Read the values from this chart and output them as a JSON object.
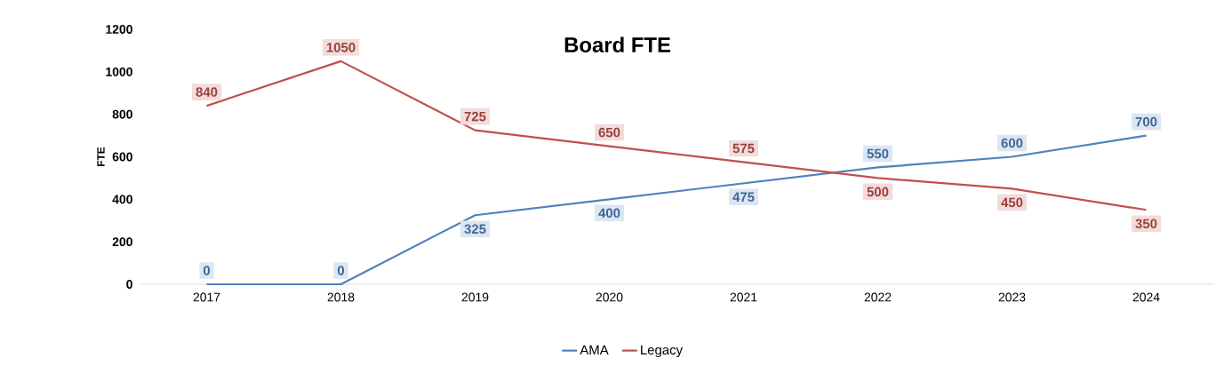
{
  "chart_data": {
    "type": "line",
    "title": "Board FTE",
    "ylabel": "FTE",
    "categories": [
      "2017",
      "2018",
      "2019",
      "2020",
      "2021",
      "2022",
      "2023",
      "2024"
    ],
    "series": [
      {
        "name": "AMA",
        "color": "#4f81bd",
        "values": [
          0,
          0,
          325,
          400,
          475,
          550,
          600,
          700
        ]
      },
      {
        "name": "Legacy",
        "color": "#c0504d",
        "values": [
          840,
          1050,
          725,
          650,
          575,
          500,
          450,
          350
        ]
      }
    ],
    "ylim": [
      0,
      1200
    ],
    "yticks": [
      0,
      200,
      400,
      600,
      800,
      1000,
      1200
    ],
    "grid": false,
    "legend": "bottom",
    "marker": "none",
    "line_style": "solid",
    "data_labels": true
  }
}
